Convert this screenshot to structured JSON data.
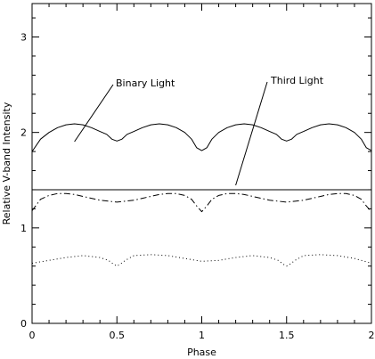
{
  "chart_data": {
    "type": "line",
    "title": "",
    "xlabel": "Phase",
    "ylabel": "Relative V-band Intensity",
    "xlim": [
      0,
      2
    ],
    "ylim": [
      0,
      3.35
    ],
    "xticks": [
      0,
      0.5,
      1,
      1.5,
      2
    ],
    "xtick_labels": [
      "0",
      "0.5",
      "1",
      "1.5",
      "2"
    ],
    "yticks": [
      0,
      1,
      2,
      3
    ],
    "ytick_labels": [
      "0",
      "1",
      "2",
      "3"
    ],
    "grid": false,
    "legend": "none",
    "color": "#000000",
    "annotations": [
      {
        "text": "Binary Light",
        "points_to_series": "binary_light"
      },
      {
        "text": "Third Light",
        "points_to_series": "third_light"
      }
    ],
    "series": [
      {
        "id": "binary_light",
        "style": "solid",
        "x": [
          0,
          0.05,
          0.1,
          0.15,
          0.2,
          0.25,
          0.3,
          0.35,
          0.4,
          0.44,
          0.47,
          0.5,
          0.53,
          0.56,
          0.6,
          0.65,
          0.7,
          0.75,
          0.8,
          0.85,
          0.9,
          0.94,
          0.97,
          1.0,
          1.03,
          1.06,
          1.1,
          1.15,
          1.2,
          1.25,
          1.3,
          1.35,
          1.4,
          1.44,
          1.47,
          1.5,
          1.53,
          1.56,
          1.6,
          1.65,
          1.7,
          1.75,
          1.8,
          1.85,
          1.9,
          1.94,
          1.97,
          2.0
        ],
        "y": [
          1.8,
          1.93,
          2.0,
          2.05,
          2.08,
          2.09,
          2.08,
          2.05,
          2.01,
          1.98,
          1.93,
          1.91,
          1.93,
          1.98,
          2.01,
          2.05,
          2.08,
          2.09,
          2.08,
          2.05,
          2.0,
          1.93,
          1.84,
          1.81,
          1.84,
          1.93,
          2.0,
          2.05,
          2.08,
          2.09,
          2.08,
          2.05,
          2.01,
          1.98,
          1.93,
          1.91,
          1.93,
          1.98,
          2.01,
          2.05,
          2.08,
          2.09,
          2.08,
          2.05,
          2.0,
          1.93,
          1.84,
          1.81
        ]
      },
      {
        "id": "third_light",
        "style": "solid",
        "x": [
          0,
          2
        ],
        "y": [
          1.4,
          1.4
        ]
      },
      {
        "id": "dash_dot_curve",
        "style": "dashdot",
        "x": [
          0,
          0.05,
          0.1,
          0.15,
          0.2,
          0.25,
          0.3,
          0.35,
          0.4,
          0.45,
          0.5,
          0.55,
          0.6,
          0.65,
          0.7,
          0.75,
          0.8,
          0.85,
          0.9,
          0.94,
          0.97,
          1.0,
          1.03,
          1.06,
          1.1,
          1.15,
          1.2,
          1.25,
          1.3,
          1.35,
          1.4,
          1.45,
          1.5,
          1.55,
          1.6,
          1.65,
          1.7,
          1.75,
          1.8,
          1.85,
          1.9,
          1.94,
          1.97,
          2.0
        ],
        "y": [
          1.18,
          1.3,
          1.34,
          1.36,
          1.36,
          1.35,
          1.33,
          1.31,
          1.29,
          1.28,
          1.27,
          1.28,
          1.29,
          1.31,
          1.33,
          1.35,
          1.36,
          1.36,
          1.34,
          1.3,
          1.23,
          1.17,
          1.23,
          1.3,
          1.34,
          1.36,
          1.36,
          1.35,
          1.33,
          1.31,
          1.29,
          1.28,
          1.27,
          1.28,
          1.29,
          1.31,
          1.33,
          1.35,
          1.36,
          1.36,
          1.34,
          1.3,
          1.23,
          1.17
        ]
      },
      {
        "id": "dotted_curve",
        "style": "dotted",
        "x": [
          0,
          0.1,
          0.2,
          0.3,
          0.4,
          0.45,
          0.48,
          0.5,
          0.52,
          0.55,
          0.6,
          0.7,
          0.8,
          0.9,
          1.0,
          1.1,
          1.2,
          1.3,
          1.4,
          1.45,
          1.48,
          1.5,
          1.52,
          1.55,
          1.6,
          1.7,
          1.8,
          1.9,
          2.0
        ],
        "y": [
          0.63,
          0.66,
          0.69,
          0.71,
          0.69,
          0.66,
          0.62,
          0.6,
          0.62,
          0.66,
          0.71,
          0.72,
          0.71,
          0.68,
          0.65,
          0.66,
          0.69,
          0.71,
          0.69,
          0.66,
          0.62,
          0.6,
          0.62,
          0.66,
          0.71,
          0.72,
          0.71,
          0.68,
          0.63
        ]
      }
    ]
  }
}
